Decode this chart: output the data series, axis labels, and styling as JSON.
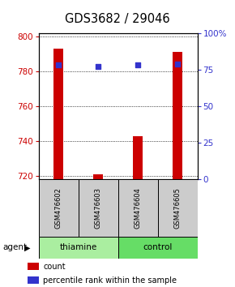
{
  "title": "GDS3682 / 29046",
  "samples": [
    "GSM476602",
    "GSM476603",
    "GSM476604",
    "GSM476605"
  ],
  "count_values": [
    793,
    721,
    743,
    791
  ],
  "percentile_values": [
    78,
    77,
    78,
    79
  ],
  "ylim_left": [
    718,
    802
  ],
  "ylim_right": [
    0,
    100
  ],
  "yticks_left": [
    720,
    740,
    760,
    780,
    800
  ],
  "yticks_right": [
    0,
    25,
    50,
    75,
    100
  ],
  "ytick_labels_right": [
    "0",
    "25",
    "50",
    "75",
    "100%"
  ],
  "bar_color": "#cc0000",
  "dot_color": "#3333cc",
  "bar_width": 0.25,
  "groups": [
    {
      "label": "thiamine",
      "samples": [
        0,
        1
      ],
      "color": "#aaeea0"
    },
    {
      "label": "control",
      "samples": [
        2,
        3
      ],
      "color": "#66dd66"
    }
  ],
  "agent_label": "agent",
  "bg_color": "#ffffff",
  "plot_bg": "#ffffff",
  "sample_box_color": "#cccccc",
  "axis_label_color_left": "#cc0000",
  "axis_label_color_right": "#3333cc"
}
